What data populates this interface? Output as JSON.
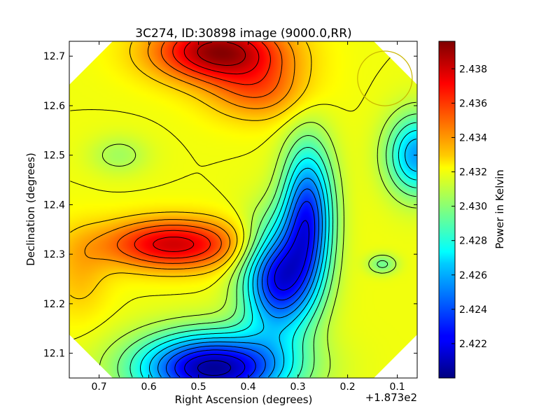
{
  "chart_data": {
    "type": "heatmap",
    "title": "3C274, ID:30898 image (9000.0,RR)",
    "xlabel": "Right Ascension (degrees)",
    "ylabel": "Declination (degrees)",
    "x_offset_label": "+1.873e2",
    "xlim": [
      0.76,
      0.06
    ],
    "ylim": [
      12.05,
      12.73
    ],
    "x_ticks": [
      0.7,
      0.6,
      0.5,
      0.4,
      0.3,
      0.2,
      0.1
    ],
    "y_ticks": [
      12.1,
      12.2,
      12.3,
      12.4,
      12.5,
      12.6,
      12.7
    ],
    "colorbar": {
      "label": "Power in Kelvin",
      "range": [
        2.42,
        2.4396
      ],
      "ticks": [
        2.422,
        2.424,
        2.426,
        2.428,
        2.43,
        2.432,
        2.434,
        2.436,
        2.438
      ],
      "colormap": "jet"
    },
    "background_level": 2.432,
    "features": [
      {
        "kind": "max",
        "x": 0.46,
        "y": 12.71,
        "value": 2.4392,
        "sx": 0.13,
        "sy": 0.06
      },
      {
        "kind": "max",
        "x": 0.55,
        "y": 12.32,
        "value": 2.438,
        "sx": 0.14,
        "sy": 0.05
      },
      {
        "kind": "max",
        "x": 0.38,
        "y": 12.63,
        "value": 2.435,
        "sx": 0.1,
        "sy": 0.06
      },
      {
        "kind": "max",
        "x": 0.74,
        "y": 12.26,
        "value": 2.4335,
        "sx": 0.06,
        "sy": 0.09
      },
      {
        "kind": "min",
        "x": 0.47,
        "y": 12.07,
        "value": 2.4205,
        "sx": 0.15,
        "sy": 0.07
      },
      {
        "kind": "min",
        "x": 0.34,
        "y": 12.25,
        "value": 2.4225,
        "sx": 0.07,
        "sy": 0.11
      },
      {
        "kind": "min",
        "x": 0.28,
        "y": 12.38,
        "value": 2.4235,
        "sx": 0.05,
        "sy": 0.14
      },
      {
        "kind": "min",
        "x": 0.06,
        "y": 12.5,
        "value": 2.4255,
        "sx": 0.06,
        "sy": 0.08
      },
      {
        "kind": "min",
        "x": 0.66,
        "y": 12.5,
        "value": 2.4305,
        "sx": 0.06,
        "sy": 0.04
      },
      {
        "kind": "min",
        "x": 0.13,
        "y": 12.28,
        "value": 2.4295,
        "sx": 0.03,
        "sy": 0.02
      }
    ],
    "beam_marker": {
      "shape": "circle",
      "x": 0.125,
      "y": 12.655,
      "radius_deg": 0.055,
      "color": "#c8b400"
    },
    "legend": "none",
    "grid": false
  }
}
